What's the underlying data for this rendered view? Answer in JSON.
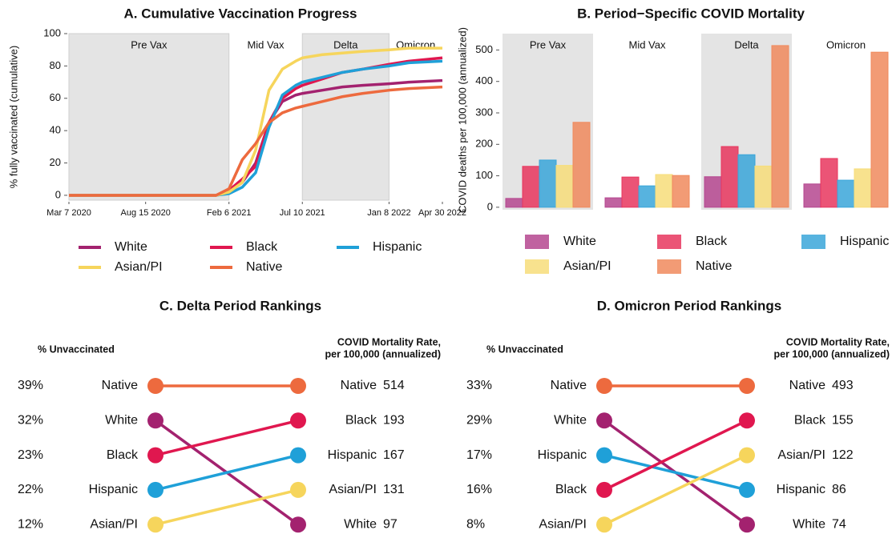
{
  "chart_data": [
    {
      "type": "line",
      "title": "A. Cumulative Vaccination Progress",
      "ylabel": "% fully vaccinated (cumulative)",
      "x": [
        "2020-03-07",
        "2020-08-15",
        "2020-12-14",
        "2021-01-10",
        "2021-02-06",
        "2021-03-06",
        "2021-04-03",
        "2021-05-01",
        "2021-05-29",
        "2021-06-26",
        "2021-07-10",
        "2021-08-21",
        "2021-10-02",
        "2021-11-13",
        "2022-01-08",
        "2022-02-19",
        "2022-04-30"
      ],
      "series": [
        {
          "name": "White",
          "color": "#a3226f",
          "values": [
            0,
            0,
            0,
            0,
            2,
            8,
            20,
            45,
            58,
            62,
            63,
            65,
            67,
            68,
            69,
            70,
            71
          ]
        },
        {
          "name": "Black",
          "color": "#e0174f",
          "values": [
            0,
            0,
            0,
            0,
            3,
            10,
            18,
            45,
            60,
            66,
            68,
            72,
            76,
            78,
            81,
            83,
            85
          ]
        },
        {
          "name": "Hispanic",
          "color": "#1fa0d8",
          "values": [
            0,
            0,
            0,
            0,
            1,
            5,
            14,
            42,
            62,
            68,
            70,
            73,
            76,
            78,
            80,
            82,
            83
          ]
        },
        {
          "name": "Asian/PI",
          "color": "#f6d55c",
          "values": [
            0,
            0,
            0,
            0,
            2,
            8,
            28,
            65,
            78,
            83,
            85,
            87,
            88,
            89,
            90,
            91,
            91
          ]
        },
        {
          "name": "Native",
          "color": "#ed6a3e",
          "values": [
            0,
            0,
            0,
            0,
            4,
            22,
            32,
            45,
            51,
            54,
            55,
            58,
            61,
            63,
            65,
            66,
            67
          ]
        }
      ],
      "xlim": [
        "2020-03-07",
        "2022-04-30"
      ],
      "xticks": [
        {
          "value": "2020-03-07",
          "label": "Mar 7 2020"
        },
        {
          "value": "2020-08-15",
          "label": "Aug 15 2020"
        },
        {
          "value": "2021-02-06",
          "label": "Feb 6 2021"
        },
        {
          "value": "2021-07-10",
          "label": "Jul 10 2021"
        },
        {
          "value": "2022-01-08",
          "label": "Jan 8 2022"
        },
        {
          "value": "2022-04-30",
          "label": "Apr 30 2022"
        }
      ],
      "ylim": [
        -3,
        100
      ],
      "yticks": [
        0,
        20,
        40,
        60,
        80,
        100
      ],
      "periods": [
        {
          "label": "Pre Vax",
          "start": "2020-03-07",
          "end": "2021-02-06",
          "shaded": true
        },
        {
          "label": "Mid Vax",
          "start": "2021-02-06",
          "end": "2021-07-10",
          "shaded": false
        },
        {
          "label": "Delta",
          "start": "2021-07-10",
          "end": "2022-01-08",
          "shaded": true
        },
        {
          "label": "Omicron",
          "start": "2022-01-08",
          "end": "2022-04-30",
          "shaded": false
        }
      ],
      "legend": "bottom"
    },
    {
      "type": "bar",
      "title": "B. Period−Specific COVID Mortality",
      "ylabel": "COVID deaths per 100,000 (annualized)",
      "categories": [
        "Pre Vax",
        "Mid Vax",
        "Delta",
        "Omicron"
      ],
      "shaded": [
        true,
        false,
        true,
        false
      ],
      "series": [
        {
          "name": "White",
          "color": "#b5478f",
          "values": [
            28,
            30,
            97,
            74
          ]
        },
        {
          "name": "Black",
          "color": "#e8365e",
          "values": [
            130,
            96,
            193,
            155
          ]
        },
        {
          "name": "Hispanic",
          "color": "#3aa6d9",
          "values": [
            150,
            68,
            167,
            86
          ]
        },
        {
          "name": "Asian/PI",
          "color": "#f7dd7a",
          "values": [
            133,
            104,
            131,
            122
          ]
        },
        {
          "name": "Native",
          "color": "#f08a5d",
          "values": [
            270,
            101,
            514,
            493
          ]
        }
      ],
      "ylim": [
        -8,
        552
      ],
      "yticks": [
        0,
        100,
        200,
        300,
        400,
        500
      ],
      "legend": "bottom"
    },
    {
      "type": "slope",
      "title": "C. Delta Period Rankings",
      "left_header": "% Unvaccinated",
      "right_header": [
        "COVID Mortality Rate,",
        "per 100,000 (annualized)"
      ],
      "left": {
        "names": [
          "Native",
          "White",
          "Black",
          "Hispanic",
          "Asian/PI"
        ],
        "values": [
          39,
          32,
          23,
          22,
          12
        ],
        "value_labels": [
          "39%",
          "32%",
          "23%",
          "22%",
          "12%"
        ],
        "colors": [
          "#ed6a3e",
          "#a3226f",
          "#e0174f",
          "#1fa0d8",
          "#f6d55c"
        ]
      },
      "right": {
        "names": [
          "Native",
          "Black",
          "Hispanic",
          "Asian/PI",
          "White"
        ],
        "values": [
          514,
          193,
          167,
          131,
          97
        ],
        "colors": [
          "#ed6a3e",
          "#e0174f",
          "#1fa0d8",
          "#f6d55c",
          "#a3226f"
        ]
      }
    },
    {
      "type": "slope",
      "title": "D. Omicron Period Rankings",
      "left_header": "% Unvaccinated",
      "right_header": [
        "COVID Mortality Rate,",
        "per 100,000 (annualized)"
      ],
      "left": {
        "names": [
          "Native",
          "White",
          "Hispanic",
          "Black",
          "Asian/PI"
        ],
        "values": [
          33,
          29,
          17,
          16,
          8
        ],
        "value_labels": [
          "33%",
          "29%",
          "17%",
          "16%",
          "8%"
        ],
        "colors": [
          "#ed6a3e",
          "#a3226f",
          "#1fa0d8",
          "#e0174f",
          "#f6d55c"
        ]
      },
      "right": {
        "names": [
          "Native",
          "Black",
          "Asian/PI",
          "Hispanic",
          "White"
        ],
        "values": [
          493,
          155,
          122,
          86,
          74
        ],
        "colors": [
          "#ed6a3e",
          "#e0174f",
          "#f6d55c",
          "#1fa0d8",
          "#a3226f"
        ]
      }
    }
  ]
}
